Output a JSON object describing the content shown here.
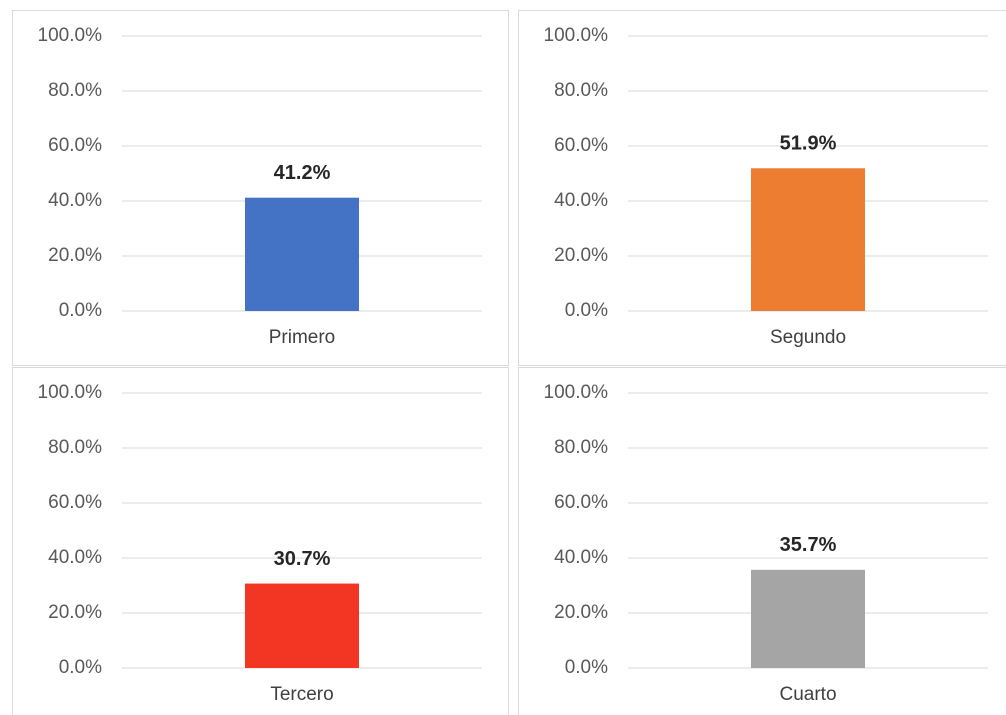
{
  "chart_data": [
    {
      "type": "bar",
      "categories": [
        "Primero"
      ],
      "values": [
        41.2
      ],
      "value_labels": [
        "41.2%"
      ],
      "color": "#4472c4",
      "ylim": [
        0,
        100
      ],
      "yticks": [
        {
          "value": 0,
          "label": "0.0%"
        },
        {
          "value": 20,
          "label": "20.0%"
        },
        {
          "value": 40,
          "label": "40.0%"
        },
        {
          "value": 60,
          "label": "60.0%"
        },
        {
          "value": 80,
          "label": "80.0%"
        },
        {
          "value": 100,
          "label": "100.0%"
        }
      ],
      "grid": true
    },
    {
      "type": "bar",
      "categories": [
        "Segundo"
      ],
      "values": [
        51.9
      ],
      "value_labels": [
        "51.9%"
      ],
      "color": "#ed7d31",
      "ylim": [
        0,
        100
      ],
      "yticks": [
        {
          "value": 0,
          "label": "0.0%"
        },
        {
          "value": 20,
          "label": "20.0%"
        },
        {
          "value": 40,
          "label": "40.0%"
        },
        {
          "value": 60,
          "label": "60.0%"
        },
        {
          "value": 80,
          "label": "80.0%"
        },
        {
          "value": 100,
          "label": "100.0%"
        }
      ],
      "grid": true
    },
    {
      "type": "bar",
      "categories": [
        "Tercero"
      ],
      "values": [
        30.7
      ],
      "value_labels": [
        "30.7%"
      ],
      "color": "#f23623",
      "ylim": [
        0,
        100
      ],
      "yticks": [
        {
          "value": 0,
          "label": "0.0%"
        },
        {
          "value": 20,
          "label": "20.0%"
        },
        {
          "value": 40,
          "label": "40.0%"
        },
        {
          "value": 60,
          "label": "60.0%"
        },
        {
          "value": 80,
          "label": "80.0%"
        },
        {
          "value": 100,
          "label": "100.0%"
        }
      ],
      "grid": true
    },
    {
      "type": "bar",
      "categories": [
        "Cuarto"
      ],
      "values": [
        35.7
      ],
      "value_labels": [
        "35.7%"
      ],
      "color": "#a5a5a5",
      "ylim": [
        0,
        100
      ],
      "yticks": [
        {
          "value": 0,
          "label": "0.0%"
        },
        {
          "value": 20,
          "label": "20.0%"
        },
        {
          "value": 40,
          "label": "40.0%"
        },
        {
          "value": 60,
          "label": "60.0%"
        },
        {
          "value": 80,
          "label": "80.0%"
        },
        {
          "value": 100,
          "label": "100.0%"
        }
      ],
      "grid": true
    }
  ]
}
